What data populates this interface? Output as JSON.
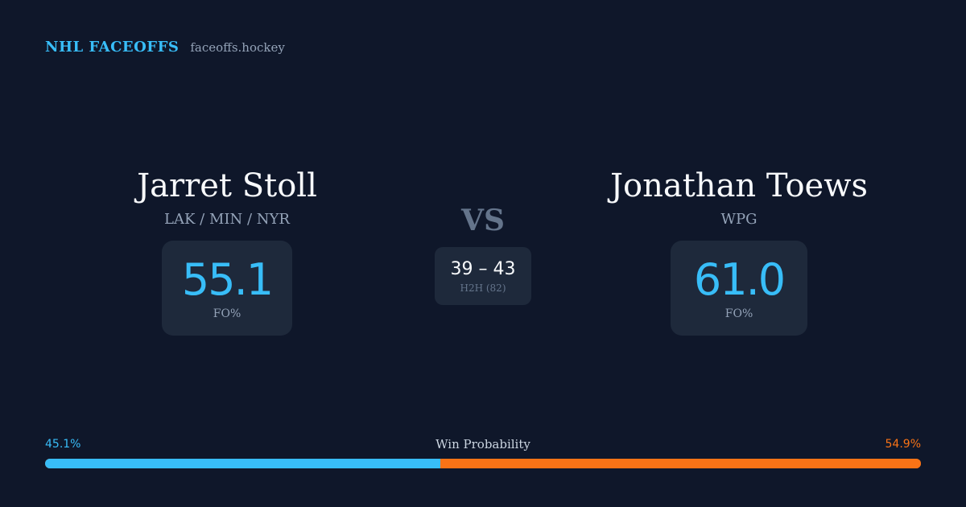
{
  "brand": {
    "name": "NHL FACEOFFS",
    "domain": "faceoffs.hockey"
  },
  "player_left": {
    "name": "Jarret Stoll",
    "teams": "LAK / MIN / NYR",
    "fo_pct": "55.1",
    "fo_label": "FO%"
  },
  "player_right": {
    "name": "Jonathan Toews",
    "teams": "WPG",
    "fo_pct": "61.0",
    "fo_label": "FO%"
  },
  "matchup": {
    "vs_label": "VS",
    "h2h_score": "39 – 43",
    "h2h_label": "H2H (82)"
  },
  "win_probability": {
    "title": "Win Probability",
    "left_label": "45.1%",
    "right_label": "54.9%",
    "left_value": 45.1,
    "right_value": 54.9
  },
  "colors": {
    "background": "#0f172a",
    "card": "#1e293b",
    "accent_left": "#38bdf8",
    "accent_right": "#f97316",
    "muted": "#94a3b8"
  }
}
